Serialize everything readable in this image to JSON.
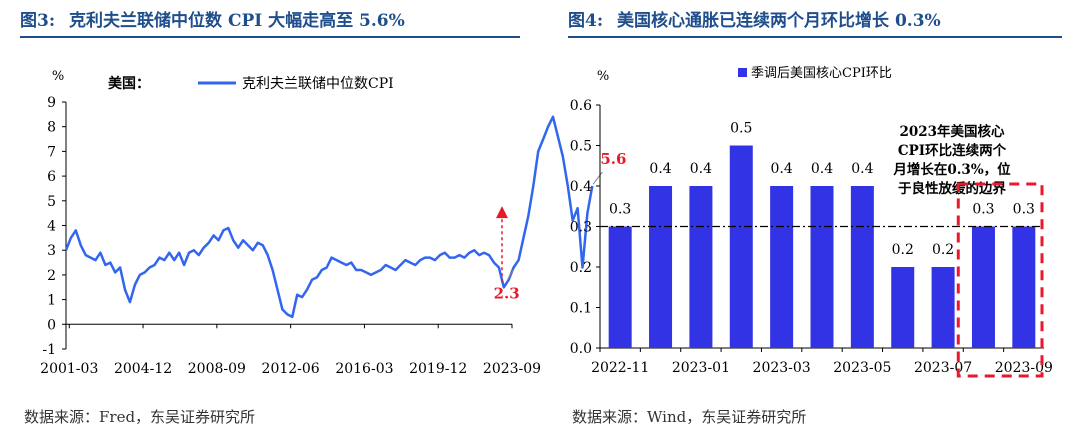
{
  "left_panel": {
    "figure_no": "图3:",
    "title": "克利夫兰联储中位数 CPI 大幅走高至 5.6%",
    "source": "数据来源：Fred，东吴证券研究所"
  },
  "right_panel": {
    "figure_no": "图4:",
    "title": "美国核心通胀已连续两个月环比增长 0.3%",
    "source": "数据来源：Wind，东吴证券研究所"
  },
  "chart_data": [
    {
      "type": "line",
      "title": "克利夫兰联储中位数 CPI 大幅走高至 5.6%",
      "ylabel": "%",
      "region_label": "美国：",
      "legend": "克利夫兰联储中位数CPI",
      "ylim": [
        -1,
        9
      ],
      "yticks": [
        -1,
        0,
        1,
        2,
        3,
        4,
        5,
        6,
        7,
        8,
        9
      ],
      "xticks": [
        "2001-03",
        "2004-12",
        "2008-09",
        "2012-06",
        "2016-03",
        "2019-12",
        "2023-09"
      ],
      "x_start": "2001-01",
      "x_end": "2023-09",
      "series_color": "#3366ee",
      "series": [
        {
          "name": "克利夫兰联储中位数CPI",
          "step_months": 3,
          "values": [
            3.0,
            3.5,
            3.8,
            3.2,
            2.8,
            2.7,
            2.6,
            2.9,
            2.4,
            2.5,
            2.1,
            2.3,
            1.4,
            0.9,
            1.6,
            2.0,
            2.1,
            2.3,
            2.4,
            2.7,
            2.6,
            2.9,
            2.6,
            2.9,
            2.4,
            2.9,
            3.0,
            2.8,
            3.1,
            3.3,
            3.6,
            3.4,
            3.8,
            3.9,
            3.4,
            3.1,
            3.4,
            3.2,
            3.0,
            3.3,
            3.2,
            2.8,
            2.2,
            1.4,
            0.6,
            0.4,
            0.3,
            1.2,
            1.1,
            1.4,
            1.8,
            1.9,
            2.2,
            2.3,
            2.7,
            2.6,
            2.5,
            2.4,
            2.5,
            2.2,
            2.2,
            2.1,
            2.0,
            2.1,
            2.2,
            2.4,
            2.3,
            2.2,
            2.4,
            2.6,
            2.5,
            2.4,
            2.6,
            2.7,
            2.7,
            2.6,
            2.8,
            2.9,
            2.7,
            2.7,
            2.8,
            2.7,
            2.9,
            3.0,
            2.8,
            2.9,
            2.8,
            2.5,
            2.3,
            1.5,
            1.8,
            2.3,
            2.6,
            3.5,
            4.4,
            5.6,
            7.0,
            7.5,
            8.0,
            8.4,
            7.6,
            6.8,
            5.6,
            4.2,
            4.7,
            2.3,
            4.5,
            5.6
          ]
        }
      ],
      "annotations": [
        {
          "text": "5.6",
          "color": "#e8192c"
        },
        {
          "text": "2.3",
          "color": "#e8192c"
        }
      ]
    },
    {
      "type": "bar",
      "title": "美国核心通胀已连续两个月环比增长 0.3%",
      "ylabel": "%",
      "legend": "季调后美国核心CPI环比",
      "ylim": [
        0.0,
        0.6
      ],
      "yticks": [
        "0.0",
        "0.1",
        "0.2",
        "0.3",
        "0.4",
        "0.5",
        "0.6"
      ],
      "categories": [
        "2022-11",
        "2022-12",
        "2023-01",
        "2023-02",
        "2023-03",
        "2023-04",
        "2023-05",
        "2023-06",
        "2023-07",
        "2023-08",
        "2023-09"
      ],
      "xtick_labels": [
        "2022-11",
        "2023-01",
        "2023-03",
        "2023-05",
        "2023-07",
        "2023-09"
      ],
      "values": [
        0.3,
        0.4,
        0.4,
        0.5,
        0.4,
        0.4,
        0.4,
        0.2,
        0.2,
        0.3,
        0.3
      ],
      "value_labels": [
        "0.3",
        "0.4",
        "0.4",
        "0.5",
        "0.4",
        "0.4",
        "0.4",
        "0.2",
        "0.2",
        "0.3",
        "0.3"
      ],
      "bar_color": "#3333e6",
      "reference_line": 0.3,
      "annotation_lines": [
        "2023年美国核心",
        "CPI环比连续两个",
        "月增长在0.3%，位",
        "于良性放缓的边界"
      ],
      "highlight_color": "#e8192c"
    }
  ]
}
